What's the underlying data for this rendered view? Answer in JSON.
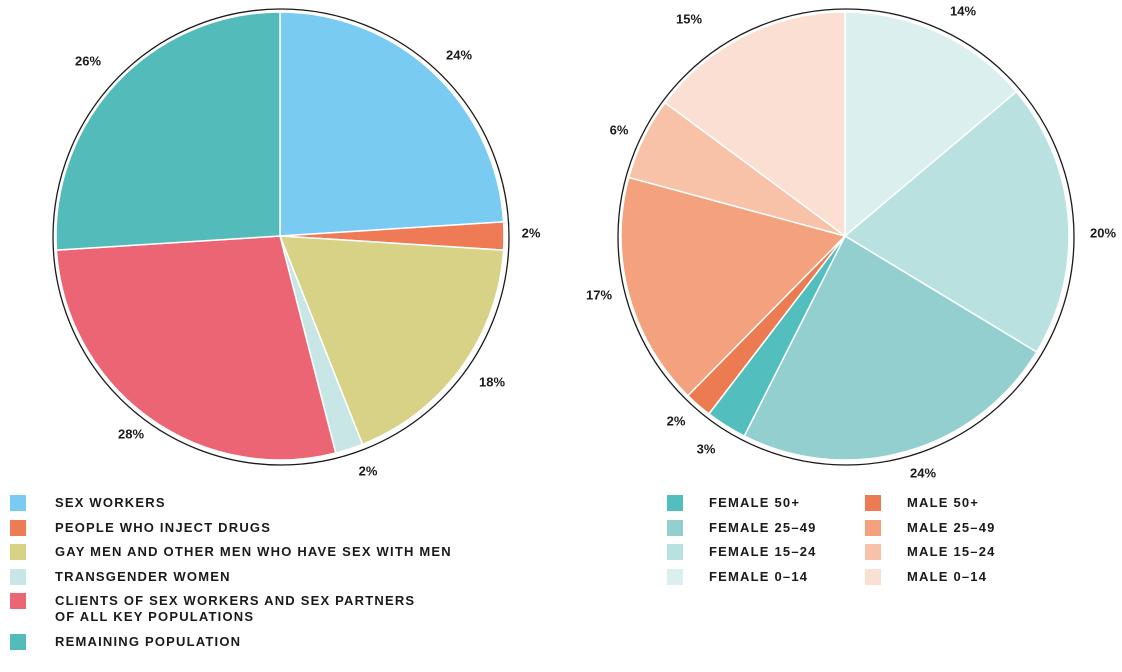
{
  "chart_data": [
    {
      "type": "pie",
      "slices": [
        {
          "label": "SEX WORKERS",
          "value": 24,
          "display": "24%",
          "color": "#79cbf2"
        },
        {
          "label": "PEOPLE WHO INJECT DRUGS",
          "value": 2,
          "display": "2%",
          "color": "#ee7b55"
        },
        {
          "label": "GAY MEN AND OTHER MEN WHO HAVE SEX WITH MEN",
          "value": 18,
          "display": "18%",
          "color": "#d8d287"
        },
        {
          "label": "TRANSGENDER WOMEN",
          "value": 2,
          "display": "2%",
          "color": "#c8e6e6"
        },
        {
          "label": "CLIENTS OF SEX WORKERS AND SEX PARTNERS\nOF ALL KEY POPULATIONS",
          "value": 28,
          "display": "28%",
          "color": "#ec6574"
        },
        {
          "label": "REMAINING POPULATION",
          "value": 26,
          "display": "26%",
          "color": "#53bcbb"
        }
      ]
    },
    {
      "type": "pie",
      "slices": [
        {
          "label": "FEMALE 0–14",
          "value": 14,
          "display": "14%",
          "color": "#dcefef"
        },
        {
          "label": "FEMALE 15–24",
          "value": 20,
          "display": "20%",
          "color": "#b9e1e0"
        },
        {
          "label": "FEMALE 25–49",
          "value": 24,
          "display": "24%",
          "color": "#92cfce"
        },
        {
          "label": "FEMALE 50+",
          "value": 3,
          "display": "3%",
          "color": "#52bfbe"
        },
        {
          "label": "MALE 50+",
          "value": 2,
          "display": "2%",
          "color": "#ec7b52"
        },
        {
          "label": "MALE 25–49",
          "value": 17,
          "display": "17%",
          "color": "#f3a27d"
        },
        {
          "label": "MALE 15–24",
          "value": 6,
          "display": "6%",
          "color": "#f8c2a9"
        },
        {
          "label": "MALE 0–14",
          "value": 15,
          "display": "15%",
          "color": "#fbdfd3"
        }
      ]
    }
  ],
  "legend_left": [
    {
      "label": "SEX WORKERS",
      "color": "#79cbf2"
    },
    {
      "label": "PEOPLE WHO INJECT DRUGS",
      "color": "#ee7b55"
    },
    {
      "label": "GAY MEN AND OTHER MEN WHO HAVE SEX WITH MEN",
      "color": "#d8d287"
    },
    {
      "label": "TRANSGENDER WOMEN",
      "color": "#c8e6e6"
    },
    {
      "label": "CLIENTS OF SEX WORKERS AND SEX PARTNERS\nOF ALL KEY POPULATIONS",
      "color": "#ec6574"
    },
    {
      "label": "REMAINING POPULATION",
      "color": "#53bcbb"
    }
  ],
  "legend_right": [
    {
      "label": "FEMALE 50+",
      "color": "#52bfbe"
    },
    {
      "label": "MALE 50+",
      "color": "#ec7b52"
    },
    {
      "label": "FEMALE 25–49",
      "color": "#92cfce"
    },
    {
      "label": "MALE 25–49",
      "color": "#f3a27d"
    },
    {
      "label": "FEMALE 15–24",
      "color": "#b9e1e0"
    },
    {
      "label": "MALE 15–24",
      "color": "#f8c2a9"
    },
    {
      "label": "FEMALE 0–14",
      "color": "#dcefef"
    },
    {
      "label": "MALE 0–14",
      "color": "#fbdfd3"
    }
  ]
}
